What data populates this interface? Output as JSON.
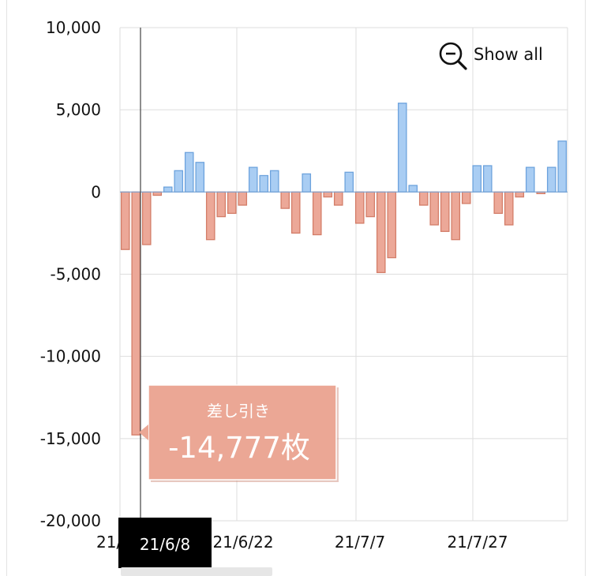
{
  "show_all_label": "Show all",
  "tooltip": {
    "series": "差し引き",
    "value": "-14,777枚",
    "date_label": "21/6/8"
  },
  "colors": {
    "positive_fill": "#a9cdf3",
    "positive_stroke": "#6da3dd",
    "negative_fill": "#eca898",
    "negative_stroke": "#d37d68",
    "tooltip_bg": "#eba795",
    "grid": "#dddddd",
    "axis_text": "#111111"
  },
  "chart_data": {
    "type": "bar",
    "ylim": [
      -20000,
      10000
    ],
    "y_ticks": [
      10000,
      5000,
      0,
      -5000,
      -10000,
      -15000,
      -20000
    ],
    "y_tick_labels": [
      "10,000",
      "5,000",
      "0",
      "-5,000",
      "-10,000",
      "-15,000",
      "-20,000"
    ],
    "x_tick_labels": [
      "21/",
      "21/6/22",
      "21/7/7",
      "21/7/27"
    ],
    "grid": true,
    "highlight_index": 1,
    "values": [
      -3500,
      -14777,
      -3200,
      -200,
      300,
      1300,
      2400,
      1800,
      -2900,
      -1500,
      -1300,
      -800,
      1500,
      1000,
      1300,
      -1000,
      -2500,
      1100,
      -2600,
      -300,
      -800,
      1200,
      -1900,
      -1500,
      -4900,
      -4000,
      5400,
      400,
      -800,
      -2000,
      -2400,
      -2900,
      -700,
      1600,
      1600,
      -1300,
      -2000,
      -300,
      1500,
      -100,
      1500,
      3100
    ]
  }
}
